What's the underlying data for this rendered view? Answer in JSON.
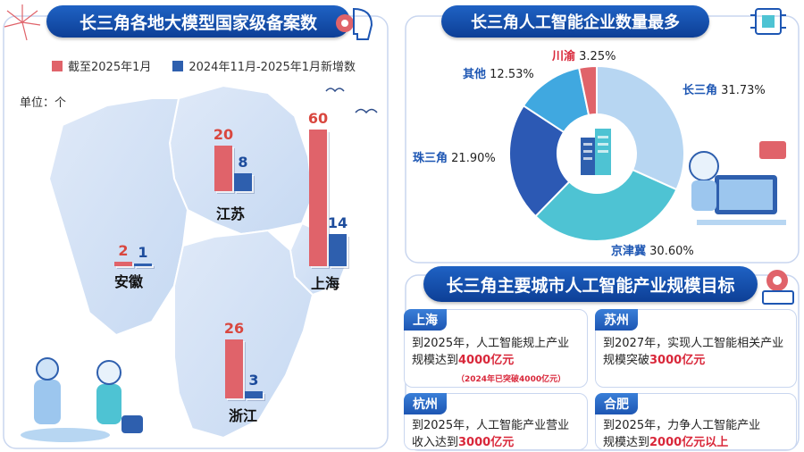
{
  "left": {
    "title": "长三角各地大模型国家级备案数",
    "legend": [
      {
        "label": "截至2025年1月",
        "color": "#e0636a"
      },
      {
        "label": "2024年11月-2025年1月新增数",
        "color": "#2e5fae"
      }
    ],
    "unit": "单位：个"
  },
  "right": {
    "title": "长三角人工智能企业数量最多"
  },
  "bottom": {
    "title": "长三角主要城市人工智能产业规模目标",
    "cards": [
      {
        "tag": "上海",
        "line1": "到2025年，人工智能规上产业",
        "line2_pre": "规模达到",
        "line2_em": "4000亿元",
        "line2_post": "",
        "note": "（2024年已突破4000亿元）"
      },
      {
        "tag": "苏州",
        "line1": "到2027年，实现人工智能相关产业",
        "line2_pre": "规模突破",
        "line2_em": "3000亿元",
        "line2_post": ""
      },
      {
        "tag": "杭州",
        "line1": "到2025年，人工智能产业营业",
        "line2_pre": "收入达到",
        "line2_em": "3000亿元",
        "line2_post": ""
      },
      {
        "tag": "合肥",
        "line1": "到2025年，力争人工智能产业",
        "line2_pre": "规模达到",
        "line2_em": "2000亿元以上",
        "line2_post": ""
      }
    ]
  },
  "chart_data": [
    {
      "type": "bar",
      "title": "长三角各地大模型国家级备案数",
      "categories": [
        "安徽",
        "江苏",
        "上海",
        "浙江"
      ],
      "series": [
        {
          "name": "截至2025年1月",
          "values": [
            2,
            20,
            60,
            26
          ],
          "color": "#e0636a"
        },
        {
          "name": "2024年11月-2025年1月新增数",
          "values": [
            1,
            8,
            14,
            3
          ],
          "color": "#2e5fae"
        }
      ],
      "ylabel": "单位：个"
    },
    {
      "type": "pie",
      "title": "长三角人工智能企业数量最多",
      "labels": [
        "长三角",
        "京津冀",
        "珠三角",
        "其他",
        "川渝"
      ],
      "values": [
        31.73,
        30.6,
        21.9,
        12.53,
        3.25
      ],
      "value_labels": [
        "31.73%",
        "30.60%",
        "21.90%",
        "12.53%",
        "3.25%"
      ],
      "colors": [
        "#b7d6f2",
        "#4ec3d3",
        "#2c59b4",
        "#40a8e0",
        "#e0636a"
      ]
    }
  ]
}
